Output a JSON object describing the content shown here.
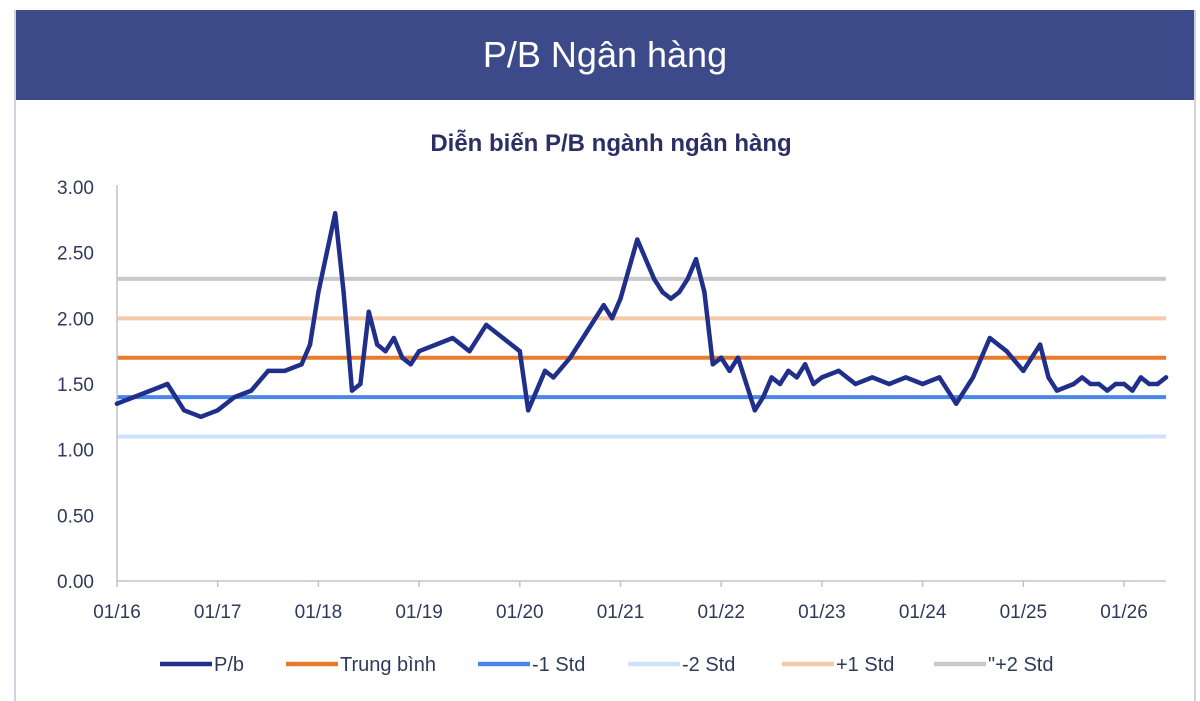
{
  "header": {
    "title": "P/B Ngân hàng"
  },
  "chart_data": {
    "type": "line",
    "title": "Diễn biến P/B ngành ngân hàng",
    "xlabel": "",
    "ylabel": "",
    "ylim": [
      0,
      3
    ],
    "y_ticks": [
      "0.00",
      "0.50",
      "1.00",
      "1.50",
      "2.00",
      "2.50",
      "3.00"
    ],
    "x_ticks": [
      "01/16",
      "01/17",
      "01/18",
      "01/19",
      "01/20",
      "01/21",
      "01/22",
      "01/23",
      "01/24",
      "01/25",
      "01/26"
    ],
    "x_range": [
      "01/16",
      "06/26"
    ],
    "grid": false,
    "legend_position": "bottom",
    "series": [
      {
        "name": "P/b",
        "color": "#1f2f8a",
        "x": [
          "01/16",
          "03/16",
          "05/16",
          "07/16",
          "09/16",
          "11/16",
          "01/17",
          "03/17",
          "05/17",
          "07/17",
          "09/17",
          "11/17",
          "12/17",
          "01/18",
          "02/18",
          "03/18",
          "04/18",
          "05/18",
          "06/18",
          "07/18",
          "08/18",
          "09/18",
          "10/18",
          "11/18",
          "12/18",
          "01/19",
          "03/19",
          "05/19",
          "07/19",
          "09/19",
          "11/19",
          "01/20",
          "02/20",
          "03/20",
          "04/20",
          "05/20",
          "07/20",
          "09/20",
          "11/20",
          "12/20",
          "01/21",
          "03/21",
          "05/21",
          "06/21",
          "07/21",
          "08/21",
          "09/21",
          "10/21",
          "11/21",
          "12/21",
          "01/22",
          "02/22",
          "03/22",
          "04/22",
          "05/22",
          "06/22",
          "07/22",
          "08/22",
          "09/22",
          "10/22",
          "11/22",
          "12/22",
          "01/23",
          "03/23",
          "05/23",
          "07/23",
          "09/23",
          "11/23",
          "01/24",
          "03/24",
          "05/24",
          "07/24",
          "09/24",
          "11/24",
          "01/25",
          "03/25",
          "04/25",
          "05/25",
          "07/25",
          "08/25",
          "09/25",
          "10/25",
          "11/25",
          "12/25",
          "01/26",
          "02/26",
          "03/26",
          "04/26",
          "05/26",
          "06/26"
        ],
        "values": [
          1.35,
          1.4,
          1.45,
          1.5,
          1.3,
          1.25,
          1.3,
          1.4,
          1.45,
          1.6,
          1.6,
          1.65,
          1.8,
          2.2,
          2.5,
          2.8,
          2.2,
          1.45,
          1.5,
          2.05,
          1.8,
          1.75,
          1.85,
          1.7,
          1.65,
          1.75,
          1.8,
          1.85,
          1.75,
          1.95,
          1.85,
          1.75,
          1.3,
          1.45,
          1.6,
          1.55,
          1.7,
          1.9,
          2.1,
          2.0,
          2.15,
          2.6,
          2.3,
          2.2,
          2.15,
          2.2,
          2.3,
          2.45,
          2.2,
          1.65,
          1.7,
          1.6,
          1.7,
          1.5,
          1.3,
          1.4,
          1.55,
          1.5,
          1.6,
          1.55,
          1.65,
          1.5,
          1.55,
          1.6,
          1.5,
          1.55,
          1.5,
          1.55,
          1.5,
          1.55,
          1.35,
          1.55,
          1.85,
          1.75,
          1.6,
          1.8,
          1.55,
          1.45,
          1.5,
          1.55,
          1.5,
          1.5,
          1.45,
          1.5,
          1.5,
          1.45,
          1.55,
          1.5,
          1.5,
          1.55
        ]
      }
    ],
    "reference_lines": [
      {
        "name": "Trung bình",
        "value": 1.7,
        "color": "#e87b2c"
      },
      {
        "name": "-1 Std",
        "value": 1.4,
        "color": "#4a86e8"
      },
      {
        "name": "-2 Std",
        "value": 1.1,
        "color": "#cfe2fb"
      },
      {
        "name": "+1 Std",
        "value": 2.0,
        "color": "#f6c9a8"
      },
      {
        "name": "\"+2 Std",
        "value": 2.3,
        "color": "#c9c9c9"
      }
    ],
    "legend_order": [
      "P/b",
      "Trung bình",
      "-1 Std",
      "-2 Std",
      "+1 Std",
      "\"+2 Std"
    ]
  }
}
